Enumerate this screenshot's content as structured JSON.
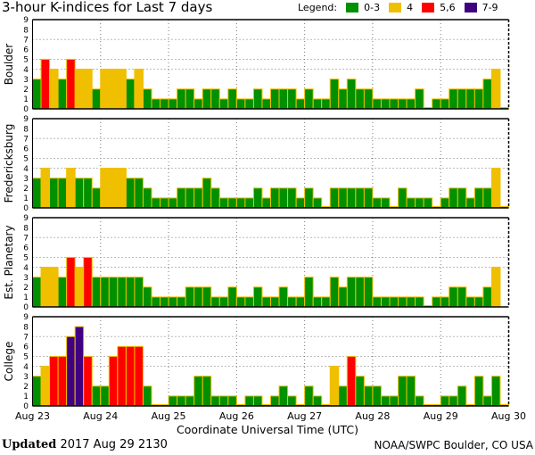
{
  "chart_data": {
    "type": "bar",
    "title": "3-hour K-indices for Last 7 days",
    "xlabel": "Coordinate Universal Time (UTC)",
    "x_tick_labels": [
      "Aug 23",
      "Aug 24",
      "Aug 25",
      "Aug 26",
      "Aug 27",
      "Aug 28",
      "Aug 29",
      "Aug 30"
    ],
    "ylim": [
      0,
      9
    ],
    "y_ticks": [
      0,
      1,
      2,
      3,
      4,
      5,
      6,
      7,
      8,
      9
    ],
    "grid_y": [
      4,
      5,
      7
    ],
    "bars_per_day": 8,
    "legend": {
      "label": "Legend:",
      "items": [
        {
          "label": "0-3",
          "color": "#009000"
        },
        {
          "label": "4",
          "color": "#f0c000"
        },
        {
          "label": "5,6",
          "color": "#ff0000"
        },
        {
          "label": "7-9",
          "color": "#400080"
        }
      ]
    },
    "series": [
      {
        "name": "Boulder",
        "values": [
          3,
          5,
          4,
          3,
          5,
          4,
          4,
          2,
          4,
          4,
          4,
          3,
          4,
          2,
          1,
          1,
          1,
          2,
          2,
          1,
          2,
          2,
          1,
          2,
          1,
          1,
          2,
          1,
          2,
          2,
          2,
          1,
          2,
          1,
          1,
          3,
          2,
          3,
          2,
          2,
          1,
          1,
          1,
          1,
          1,
          2,
          0,
          1,
          1,
          2,
          2,
          2,
          2,
          3,
          4,
          0
        ]
      },
      {
        "name": "Fredericksburg",
        "values": [
          3,
          4,
          3,
          3,
          4,
          3,
          3,
          2,
          4,
          4,
          4,
          3,
          3,
          2,
          1,
          1,
          1,
          2,
          2,
          2,
          3,
          2,
          1,
          1,
          1,
          1,
          2,
          1,
          2,
          2,
          2,
          1,
          2,
          1,
          0,
          2,
          2,
          2,
          2,
          2,
          1,
          1,
          0,
          2,
          1,
          1,
          1,
          0,
          1,
          2,
          2,
          1,
          2,
          2,
          4,
          0
        ]
      },
      {
        "name": "Est. Planetary",
        "values": [
          3,
          4,
          4,
          3,
          5,
          4,
          5,
          3,
          3,
          3,
          3,
          3,
          3,
          2,
          1,
          1,
          1,
          1,
          2,
          2,
          2,
          1,
          1,
          2,
          1,
          1,
          2,
          1,
          1,
          2,
          1,
          1,
          3,
          1,
          1,
          3,
          2,
          3,
          3,
          3,
          1,
          1,
          1,
          1,
          1,
          1,
          0,
          1,
          1,
          2,
          2,
          1,
          1,
          2,
          4,
          null
        ]
      },
      {
        "name": "College",
        "values": [
          3,
          4,
          5,
          5,
          7,
          8,
          5,
          2,
          2,
          5,
          6,
          6,
          6,
          2,
          0,
          0,
          1,
          1,
          1,
          3,
          3,
          1,
          1,
          1,
          0,
          1,
          1,
          0,
          1,
          2,
          1,
          0,
          2,
          1,
          0,
          4,
          2,
          5,
          3,
          2,
          2,
          1,
          1,
          3,
          3,
          1,
          0,
          0,
          1,
          1,
          2,
          0,
          3,
          1,
          3,
          0
        ]
      }
    ]
  },
  "footer": {
    "updated_label": "Updated",
    "updated_value": "2017 Aug 29 2130",
    "source": "NOAA/SWPC Boulder, CO USA"
  }
}
